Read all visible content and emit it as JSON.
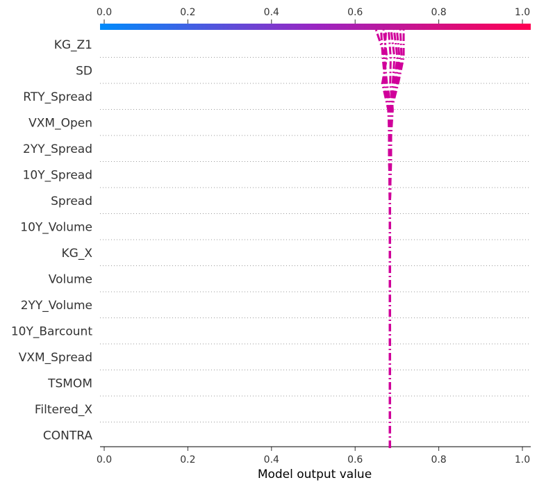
{
  "chart_data": {
    "type": "line",
    "title": "",
    "xlabel": "Model output value",
    "ylabel": "",
    "xlim": [
      0.0,
      1.0
    ],
    "x_ticks": [
      "0.0",
      "0.2",
      "0.4",
      "0.6",
      "0.8",
      "1.0"
    ],
    "features": [
      "KG_Z1",
      "SD",
      "RTY_Spread",
      "VXM_Open",
      "2YY_Spread",
      "10Y_Spread",
      "Spread",
      "10Y_Volume",
      "KG_X",
      "Volume",
      "2YY_Volume",
      "10Y_Barcount",
      "VXM_Spread",
      "TSMOM",
      "Filtered_X",
      "CONTRA"
    ],
    "base_value": 0.683,
    "line_color": "#d0009a",
    "colorbar": {
      "low_color": "#008bfb",
      "mid_color": "#9a25c2",
      "high_color": "#ff0052"
    },
    "grid": false,
    "series": [
      {
        "values": [
          0.683,
          0.683,
          0.683,
          0.683,
          0.683,
          0.683,
          0.683,
          0.683,
          0.683,
          0.683,
          0.683,
          0.681,
          0.681,
          0.68,
          0.668,
          0.672,
          0.65
        ]
      },
      {
        "values": [
          0.683,
          0.683,
          0.683,
          0.683,
          0.683,
          0.683,
          0.683,
          0.683,
          0.683,
          0.683,
          0.682,
          0.682,
          0.681,
          0.684,
          0.672,
          0.666,
          0.662
        ]
      },
      {
        "values": [
          0.683,
          0.683,
          0.683,
          0.683,
          0.683,
          0.683,
          0.683,
          0.683,
          0.683,
          0.683,
          0.683,
          0.682,
          0.682,
          0.679,
          0.665,
          0.676,
          0.668
        ]
      },
      {
        "values": [
          0.683,
          0.683,
          0.683,
          0.683,
          0.683,
          0.683,
          0.683,
          0.683,
          0.683,
          0.683,
          0.684,
          0.684,
          0.685,
          0.687,
          0.676,
          0.67,
          0.674
        ]
      },
      {
        "values": [
          0.683,
          0.683,
          0.683,
          0.683,
          0.683,
          0.683,
          0.683,
          0.683,
          0.683,
          0.683,
          0.684,
          0.685,
          0.686,
          0.69,
          0.684,
          0.685,
          0.68
        ]
      },
      {
        "values": [
          0.683,
          0.683,
          0.683,
          0.683,
          0.683,
          0.683,
          0.683,
          0.683,
          0.683,
          0.683,
          0.683,
          0.684,
          0.685,
          0.688,
          0.69,
          0.694,
          0.686
        ]
      },
      {
        "values": [
          0.683,
          0.683,
          0.683,
          0.683,
          0.683,
          0.683,
          0.683,
          0.683,
          0.683,
          0.683,
          0.684,
          0.685,
          0.686,
          0.683,
          0.693,
          0.701,
          0.693
        ]
      },
      {
        "values": [
          0.683,
          0.683,
          0.683,
          0.683,
          0.683,
          0.683,
          0.683,
          0.683,
          0.683,
          0.683,
          0.684,
          0.686,
          0.686,
          0.686,
          0.697,
          0.706,
          0.7
        ]
      },
      {
        "values": [
          0.683,
          0.683,
          0.683,
          0.683,
          0.683,
          0.683,
          0.683,
          0.683,
          0.683,
          0.683,
          0.683,
          0.684,
          0.685,
          0.684,
          0.7,
          0.711,
          0.708
        ]
      },
      {
        "values": [
          0.683,
          0.683,
          0.683,
          0.683,
          0.683,
          0.683,
          0.683,
          0.683,
          0.683,
          0.683,
          0.684,
          0.685,
          0.686,
          0.687,
          0.703,
          0.716,
          0.716
        ]
      }
    ]
  }
}
